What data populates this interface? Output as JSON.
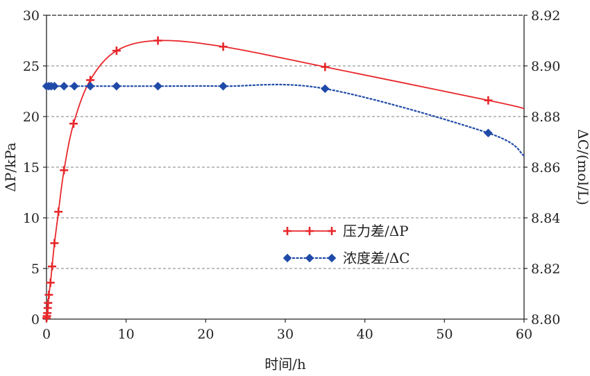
{
  "chart_data": {
    "type": "line",
    "xlabel": "时间/h",
    "ylabel": "ΔP/kPa",
    "y2label": "ΔC/(mol/L)",
    "xlim": [
      0,
      60
    ],
    "ylim": [
      0,
      30
    ],
    "y2lim": [
      8.8,
      8.92
    ],
    "xticks": [
      "0",
      "10",
      "20",
      "30",
      "40",
      "50",
      "60"
    ],
    "yticks": [
      "0",
      "5",
      "10",
      "15",
      "20",
      "25",
      "30"
    ],
    "y2ticks": [
      "8.80",
      "8.82",
      "8.84",
      "8.86",
      "8.88",
      "8.90",
      "8.92"
    ],
    "grid": "horizontal dashed",
    "legend_placement": "center-right",
    "series": [
      {
        "name": "压力差/ΔP",
        "axis": "left",
        "color": "#e8262a",
        "marker": "plus",
        "x": [
          0,
          0.05,
          0.1,
          0.15,
          0.2,
          0.3,
          0.5,
          0.7,
          1.0,
          1.5,
          2.2,
          3.4,
          5.5,
          8.8,
          14,
          22.2,
          35,
          55.5
        ],
        "y": [
          0.1,
          0.3,
          0.6,
          1.1,
          1.6,
          2.4,
          3.6,
          5.2,
          7.5,
          10.6,
          14.7,
          19.3,
          23.6,
          26.5,
          27.5,
          26.9,
          24.9,
          21.6
        ],
        "curve_end": [
          60,
          20.8
        ]
      },
      {
        "name": "浓度差/ΔC",
        "axis": "right",
        "color": "#1f4aa8",
        "marker": "diamond",
        "x": [
          0,
          0.3,
          0.6,
          1.0,
          2.2,
          3.5,
          5.5,
          8.8,
          14,
          22.2,
          35,
          55.5
        ],
        "y": [
          8.892,
          8.892,
          8.892,
          8.892,
          8.892,
          8.892,
          8.892,
          8.892,
          8.892,
          8.892,
          8.891,
          8.8735
        ],
        "curve_end": [
          60,
          8.8645
        ]
      }
    ]
  }
}
